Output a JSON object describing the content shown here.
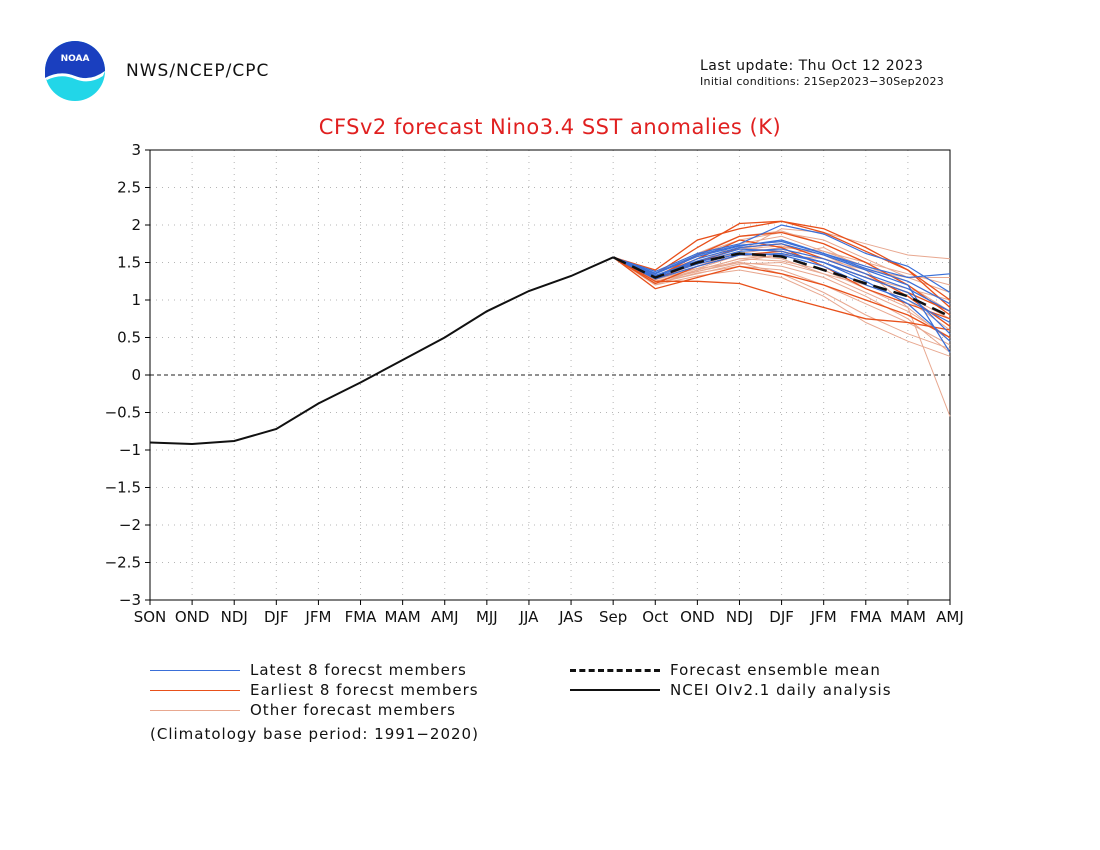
{
  "header": {
    "agency": "NWS/NCEP/CPC",
    "last_update": "Last update: Thu Oct 12 2023",
    "initial_conditions": "Initial conditions: 21Sep2023−30Sep2023",
    "logo_text": "NOAA"
  },
  "legend": {
    "latest": "Latest 8 forecst members",
    "earliest": "Earliest 8 forecst members",
    "other": "Other forecast members",
    "mean": "Forecast ensemble mean",
    "analysis": "NCEI OIv2.1 daily analysis",
    "base_period": "(Climatology base period: 1991−2020)"
  },
  "colors": {
    "title": "#e02020",
    "latest": "#3a6fd8",
    "earliest": "#e8501a",
    "other": "#e8a890",
    "mean": "#111111",
    "analysis": "#111111",
    "logo_blue": "#1a3fbf",
    "logo_cyan": "#22d6e8"
  },
  "chart_data": {
    "type": "line",
    "title": "CFSv2 forecast Nino3.4 SST anomalies (K)",
    "categories": [
      "SON",
      "OND",
      "NDJ",
      "DJF",
      "JFM",
      "FMA",
      "MAM",
      "AMJ",
      "MJJ",
      "JJA",
      "JAS",
      "Sep",
      "Oct",
      "OND",
      "NDJ",
      "DJF",
      "JFM",
      "FMA",
      "MAM",
      "AMJ"
    ],
    "y_ticks": [
      "3",
      "2.5",
      "2",
      "1.5",
      "1",
      "0.5",
      "0",
      "−0.5",
      "−1",
      "−1.5",
      "−2",
      "−2.5",
      "−3"
    ],
    "ylim": [
      -3,
      3
    ],
    "grid": true,
    "analysis": {
      "name": "NCEI OIv2.1 daily analysis",
      "values": [
        -0.9,
        -0.92,
        -0.88,
        -0.72,
        -0.38,
        -0.1,
        0.2,
        0.5,
        0.85,
        1.12,
        1.32,
        1.57
      ]
    },
    "ensemble_mean": {
      "name": "Forecast ensemble mean",
      "x_start": 11,
      "values": [
        1.57,
        1.3,
        1.5,
        1.62,
        1.58,
        1.4,
        1.22,
        1.05,
        0.78
      ]
    },
    "latest": [
      [
        1.57,
        1.3,
        1.55,
        1.7,
        1.75,
        1.6,
        1.4,
        1.2,
        0.3
      ],
      [
        1.57,
        1.35,
        1.58,
        1.72,
        1.8,
        1.62,
        1.45,
        1.3,
        1.35
      ],
      [
        1.57,
        1.32,
        1.5,
        1.65,
        1.68,
        1.55,
        1.35,
        1.15,
        0.85
      ],
      [
        1.57,
        1.28,
        1.45,
        1.6,
        1.62,
        1.5,
        1.3,
        1.1,
        0.55
      ],
      [
        1.57,
        1.38,
        1.62,
        1.75,
        2.0,
        1.88,
        1.62,
        1.45,
        1.1
      ],
      [
        1.57,
        1.33,
        1.52,
        1.68,
        1.65,
        1.5,
        1.25,
        0.95,
        0.45
      ],
      [
        1.57,
        1.36,
        1.6,
        1.73,
        1.78,
        1.62,
        1.42,
        1.25,
        0.95
      ],
      [
        1.57,
        1.3,
        1.48,
        1.62,
        1.6,
        1.45,
        1.2,
        1.0,
        0.7
      ]
    ],
    "earliest": [
      [
        1.57,
        1.22,
        1.45,
        1.6,
        1.65,
        1.5,
        1.3,
        1.1,
        0.85
      ],
      [
        1.57,
        1.35,
        1.7,
        2.02,
        2.05,
        1.9,
        1.65,
        1.4,
        1.0
      ],
      [
        1.57,
        1.3,
        1.6,
        1.85,
        1.9,
        1.75,
        1.5,
        1.2,
        0.8
      ],
      [
        1.57,
        1.15,
        1.3,
        1.45,
        1.35,
        1.2,
        1.0,
        0.8,
        0.5
      ],
      [
        1.57,
        1.4,
        1.8,
        1.95,
        2.05,
        1.95,
        1.7,
        1.4,
        0.9
      ],
      [
        1.57,
        1.25,
        1.25,
        1.22,
        1.05,
        0.9,
        0.75,
        0.7,
        0.6
      ],
      [
        1.57,
        1.28,
        1.5,
        1.7,
        1.75,
        1.55,
        1.35,
        1.05,
        0.65
      ],
      [
        1.57,
        1.32,
        1.55,
        1.8,
        1.7,
        1.45,
        1.15,
        0.95,
        0.75
      ]
    ],
    "others": [
      [
        1.57,
        1.2,
        1.4,
        1.55,
        1.6,
        1.7,
        1.4,
        0.9,
        -0.55
      ],
      [
        1.57,
        1.25,
        1.38,
        1.5,
        1.45,
        1.3,
        1.05,
        0.75,
        0.3
      ],
      [
        1.57,
        1.3,
        1.45,
        1.65,
        1.95,
        1.9,
        1.75,
        1.6,
        1.55
      ],
      [
        1.57,
        1.22,
        1.35,
        1.48,
        1.5,
        1.35,
        1.2,
        1.0,
        0.6
      ],
      [
        1.57,
        1.33,
        1.5,
        1.75,
        1.85,
        1.65,
        1.45,
        1.25,
        0.95
      ],
      [
        1.57,
        1.27,
        1.42,
        1.6,
        1.55,
        1.35,
        1.1,
        0.85,
        0.5
      ],
      [
        1.57,
        1.35,
        1.6,
        1.8,
        1.9,
        1.8,
        1.55,
        1.3,
        1.1
      ],
      [
        1.57,
        1.2,
        1.32,
        1.4,
        1.3,
        1.05,
        0.7,
        0.45,
        0.25
      ],
      [
        1.57,
        1.3,
        1.48,
        1.62,
        1.7,
        1.65,
        1.5,
        1.35,
        1.2
      ],
      [
        1.57,
        1.25,
        1.4,
        1.55,
        1.52,
        1.4,
        1.15,
        0.9,
        0.45
      ],
      [
        1.57,
        1.38,
        1.62,
        1.85,
        1.92,
        1.75,
        1.5,
        1.2,
        0.85
      ],
      [
        1.57,
        1.28,
        1.42,
        1.5,
        1.35,
        1.1,
        0.8,
        0.55,
        0.35
      ],
      [
        1.57,
        1.3,
        1.55,
        1.7,
        1.65,
        1.5,
        1.3,
        1.15,
        1.0
      ],
      [
        1.57,
        1.24,
        1.38,
        1.52,
        1.6,
        1.55,
        1.4,
        1.3,
        1.3
      ],
      [
        1.57,
        1.32,
        1.5,
        1.68,
        1.72,
        1.6,
        1.35,
        1.05,
        0.75
      ],
      [
        1.57,
        1.22,
        1.36,
        1.45,
        1.4,
        1.2,
        0.95,
        0.7,
        0.4
      ]
    ]
  }
}
